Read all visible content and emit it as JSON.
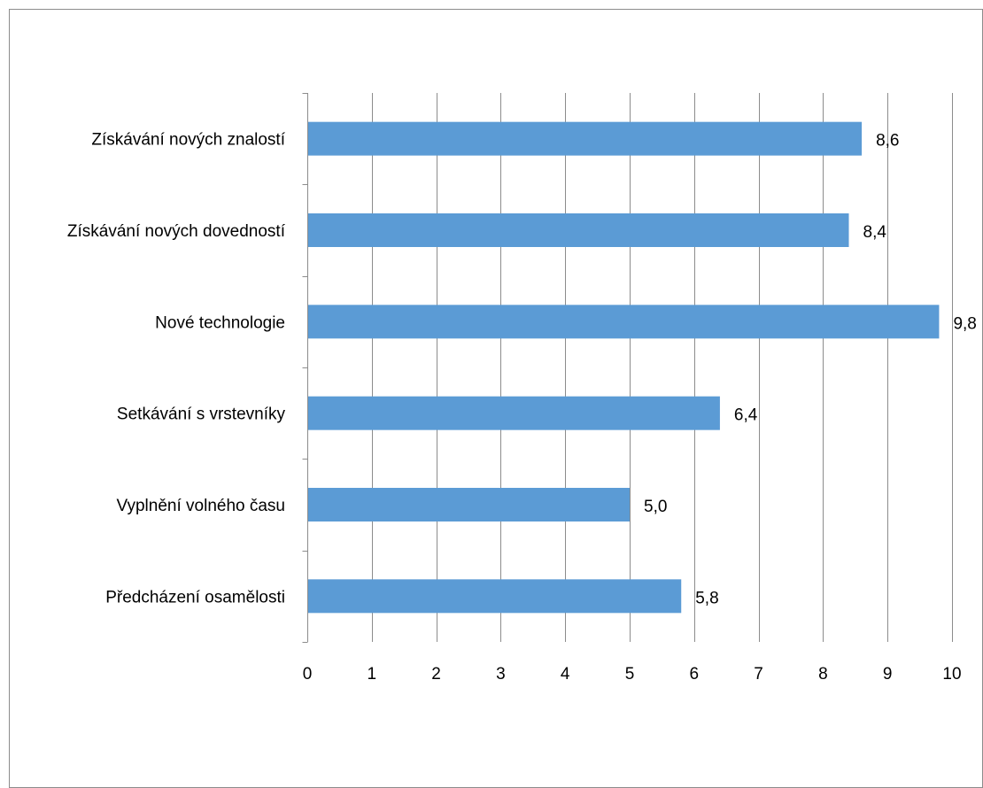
{
  "chart_data": {
    "type": "bar",
    "orientation": "horizontal",
    "categories": [
      "Získávání nových znalostí",
      "Získávání nových dovedností",
      "Nové technologie",
      "Setkávání s vrstevníky",
      "Vyplnění volného času",
      "Předcházení osamělosti"
    ],
    "values": [
      8.6,
      8.4,
      9.8,
      6.4,
      5.0,
      5.8
    ],
    "value_labels": [
      "8,6",
      "8,4",
      "9,8",
      "6,4",
      "5,0",
      "5,8"
    ],
    "xlim": [
      0,
      10
    ],
    "x_ticks": [
      0,
      1,
      2,
      3,
      4,
      5,
      6,
      7,
      8,
      9,
      10
    ],
    "x_tick_labels": [
      "0",
      "1",
      "2",
      "3",
      "4",
      "5",
      "6",
      "7",
      "8",
      "9",
      "10"
    ],
    "title": "",
    "xlabel": "",
    "ylabel": "",
    "grid": "vertical",
    "legend": "none",
    "colors": {
      "bar": "#5b9bd5",
      "grid": "#8c8c8c",
      "axis": "#8c8c8c",
      "text": "#000000"
    }
  }
}
